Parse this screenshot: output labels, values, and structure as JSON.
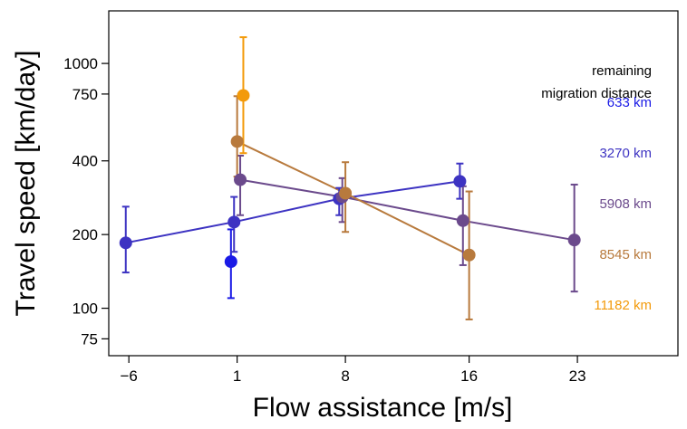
{
  "chart_data": {
    "type": "scatter",
    "title": "",
    "xlabel": "Flow assistance [m/s]",
    "ylabel": "Travel speed [km/day]",
    "x_ticks": [
      -6,
      1,
      8,
      16,
      23
    ],
    "y_ticks": [
      75,
      100,
      200,
      400,
      750,
      1000
    ],
    "y_scale": "log",
    "xlim": [
      -7.3,
      29.5
    ],
    "ylim": [
      64,
      1640
    ],
    "grid": false,
    "legend_title": [
      "remaining",
      "migration distance"
    ],
    "legend_position": "right",
    "series": [
      {
        "name": "633 km",
        "color": "#1a1ae6",
        "connect": false,
        "points": [
          {
            "x": 0.6,
            "y": 155,
            "lo": 110,
            "hi": 210
          }
        ]
      },
      {
        "name": "3270 km",
        "color": "#3d33c2",
        "connect": true,
        "points": [
          {
            "x": -6.2,
            "y": 185,
            "lo": 140,
            "hi": 260
          },
          {
            "x": 0.8,
            "y": 225,
            "lo": 170,
            "hi": 285
          },
          {
            "x": 7.6,
            "y": 280,
            "lo": 240,
            "hi": 310
          },
          {
            "x": 15.4,
            "y": 330,
            "lo": 280,
            "hi": 390
          }
        ]
      },
      {
        "name": "5908 km",
        "color": "#6b4a8c",
        "connect": true,
        "points": [
          {
            "x": 1.2,
            "y": 335,
            "lo": 240,
            "hi": 420
          },
          {
            "x": 7.8,
            "y": 285,
            "lo": 225,
            "hi": 340
          },
          {
            "x": 15.6,
            "y": 228,
            "lo": 150,
            "hi": 315
          },
          {
            "x": 22.8,
            "y": 190,
            "lo": 117,
            "hi": 320
          }
        ]
      },
      {
        "name": "8545 km",
        "color": "#b87a3d",
        "connect": true,
        "points": [
          {
            "x": 1.0,
            "y": 480,
            "lo": 345,
            "hi": 735
          },
          {
            "x": 8.0,
            "y": 295,
            "lo": 205,
            "hi": 395
          },
          {
            "x": 16.0,
            "y": 165,
            "lo": 90,
            "hi": 300
          }
        ]
      },
      {
        "name": "11182 km",
        "color": "#f39a0a",
        "connect": false,
        "points": [
          {
            "x": 1.4,
            "y": 740,
            "lo": 430,
            "hi": 1280
          }
        ]
      }
    ]
  }
}
